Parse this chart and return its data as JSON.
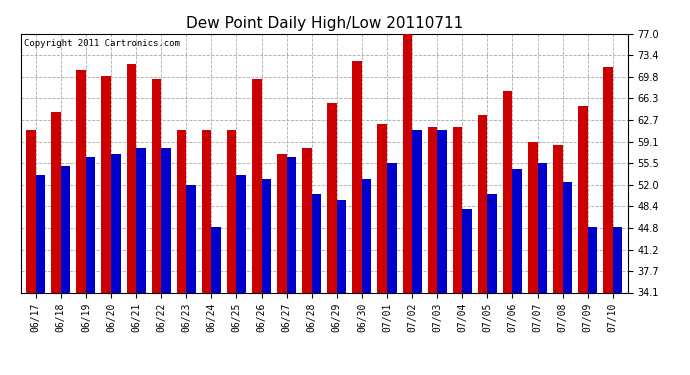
{
  "title": "Dew Point Daily High/Low 20110711",
  "copyright": "Copyright 2011 Cartronics.com",
  "dates": [
    "06/17",
    "06/18",
    "06/19",
    "06/20",
    "06/21",
    "06/22",
    "06/23",
    "06/24",
    "06/25",
    "06/26",
    "06/27",
    "06/28",
    "06/29",
    "06/30",
    "07/01",
    "07/02",
    "07/03",
    "07/04",
    "07/05",
    "07/06",
    "07/07",
    "07/08",
    "07/09",
    "07/10"
  ],
  "highs": [
    61.0,
    64.0,
    71.0,
    70.0,
    72.0,
    69.5,
    61.0,
    61.0,
    61.0,
    69.5,
    57.0,
    58.0,
    65.5,
    72.5,
    62.0,
    77.0,
    61.5,
    61.5,
    63.5,
    67.5,
    59.0,
    58.5,
    65.0,
    71.5
  ],
  "lows": [
    53.5,
    55.0,
    56.5,
    57.0,
    58.0,
    58.0,
    52.0,
    45.0,
    53.5,
    53.0,
    56.5,
    50.5,
    49.5,
    53.0,
    55.5,
    61.0,
    61.0,
    48.0,
    50.5,
    54.5,
    55.5,
    52.5,
    45.0,
    45.0
  ],
  "high_color": "#cc0000",
  "low_color": "#0000cc",
  "bg_color": "#ffffff",
  "grid_color": "#aaaaaa",
  "ymin": 34.1,
  "ymax": 77.0,
  "yticks": [
    34.1,
    37.7,
    41.2,
    44.8,
    48.4,
    52.0,
    55.5,
    59.1,
    62.7,
    66.3,
    69.8,
    73.4,
    77.0
  ],
  "bar_width": 0.38,
  "title_fontsize": 11,
  "tick_fontsize": 7,
  "copyright_fontsize": 6.5
}
